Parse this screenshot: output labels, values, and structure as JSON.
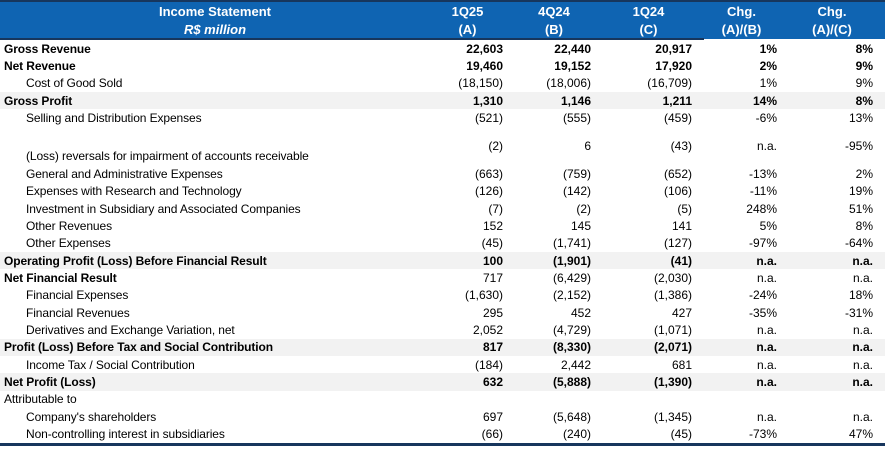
{
  "table": {
    "title": "Income Statement",
    "subtitle": "R$ million",
    "columns": [
      {
        "line1": "1Q25",
        "line2": "(A)"
      },
      {
        "line1": "4Q24",
        "line2": "(B)"
      },
      {
        "line1": "1Q24",
        "line2": "(C)"
      },
      {
        "line1": "Chg.",
        "line2": "(A)/(B)"
      },
      {
        "line1": "Chg.",
        "line2": "(A)/(C)"
      }
    ],
    "rows": [
      {
        "label": "Gross Revenue",
        "values": [
          "22,603",
          "22,440",
          "20,917",
          "1%",
          "8%"
        ],
        "style": "r-bold"
      },
      {
        "label": "Net Revenue",
        "values": [
          "19,460",
          "19,152",
          "17,920",
          "2%",
          "9%"
        ],
        "style": "r-bold"
      },
      {
        "label": "Cost of Good Sold",
        "values": [
          "(18,150)",
          "(18,006)",
          "(16,709)",
          "1%",
          "9%"
        ],
        "style": "r-item"
      },
      {
        "label": "Gross Profit",
        "values": [
          "1,310",
          "1,146",
          "1,211",
          "14%",
          "8%"
        ],
        "style": "r-bold r-band"
      },
      {
        "label": "Selling and Distribution Expenses",
        "values": [
          "(521)",
          "(555)",
          "(459)",
          "-6%",
          "13%"
        ],
        "style": "r-item"
      },
      {
        "label": "(Loss) reversals for impairment of accounts receivable",
        "values": [
          "(2)",
          "6",
          "(43)",
          "n.a.",
          "-95%"
        ],
        "style": "r-item r-tall"
      },
      {
        "label": "General and Administrative Expenses",
        "values": [
          "(663)",
          "(759)",
          "(652)",
          "-13%",
          "2%"
        ],
        "style": "r-item"
      },
      {
        "label": "Expenses with Research and Technology",
        "values": [
          "(126)",
          "(142)",
          "(106)",
          "-11%",
          "19%"
        ],
        "style": "r-item"
      },
      {
        "label": "Investment in Subsidiary and Associated Companies",
        "values": [
          "(7)",
          "(2)",
          "(5)",
          "248%",
          "51%"
        ],
        "style": "r-item"
      },
      {
        "label": "Other Revenues",
        "values": [
          "152",
          "145",
          "141",
          "5%",
          "8%"
        ],
        "style": "r-item"
      },
      {
        "label": "Other Expenses",
        "values": [
          "(45)",
          "(1,741)",
          "(127)",
          "-97%",
          "-64%"
        ],
        "style": "r-item"
      },
      {
        "label": "Operating Profit (Loss) Before Financial Result",
        "values": [
          "100",
          "(1,901)",
          "(41)",
          "n.a.",
          "n.a."
        ],
        "style": "r-bold r-band"
      },
      {
        "label": "Net Financial Result",
        "values": [
          "717",
          "(6,429)",
          "(2,030)",
          "n.a.",
          "n.a."
        ],
        "style": "r-boldlabel"
      },
      {
        "label": "Financial Expenses",
        "values": [
          "(1,630)",
          "(2,152)",
          "(1,386)",
          "-24%",
          "18%"
        ],
        "style": "r-item"
      },
      {
        "label": "Financial Revenues",
        "values": [
          "295",
          "452",
          "427",
          "-35%",
          "-31%"
        ],
        "style": "r-item"
      },
      {
        "label": "Derivatives and Exchange Variation, net",
        "values": [
          "2,052",
          "(4,729)",
          "(1,071)",
          "n.a.",
          "n.a."
        ],
        "style": "r-item"
      },
      {
        "label": "Profit (Loss) Before Tax and Social Contribution",
        "values": [
          "817",
          "(8,330)",
          "(2,071)",
          "n.a.",
          "n.a."
        ],
        "style": "r-bold r-band"
      },
      {
        "label": "Income Tax / Social Contribution",
        "values": [
          "(184)",
          "2,442",
          "681",
          "n.a.",
          "n.a."
        ],
        "style": "r-item"
      },
      {
        "label": "Net Profit (Loss)",
        "values": [
          "632",
          "(5,888)",
          "(1,390)",
          "n.a.",
          "n.a."
        ],
        "style": "r-bold r-band"
      },
      {
        "label": "Attributable to",
        "values": [
          "",
          "",
          "",
          "",
          ""
        ],
        "style": "r-plain"
      },
      {
        "label": "Company's shareholders",
        "values": [
          "697",
          "(5,648)",
          "(1,345)",
          "n.a.",
          "n.a."
        ],
        "style": "r-item"
      },
      {
        "label": "Non-controlling interest in subsidiaries",
        "values": [
          "(66)",
          "(240)",
          "(45)",
          "-73%",
          "47%"
        ],
        "style": "r-item"
      }
    ]
  },
  "colors": {
    "header_bg": "#0F64B2",
    "border_navy": "#17365D",
    "band_bg": "#F2F2F2",
    "text": "#000000",
    "header_text": "#FFFFFF"
  }
}
